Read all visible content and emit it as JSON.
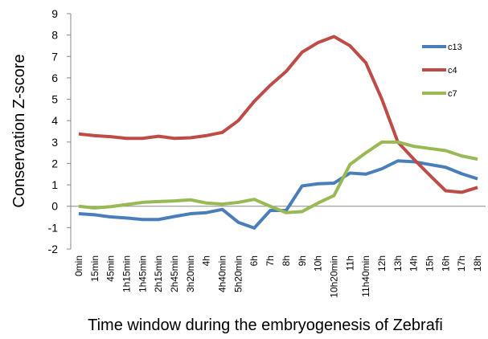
{
  "chart_data": {
    "type": "line",
    "x_label": "Time window during the embryogenesis of Zebrafi",
    "y_label": "Conservation Z-score",
    "categories": [
      "0min",
      "15min",
      "45min",
      "1h15min",
      "1h45min",
      "2h15min",
      "2h45min",
      "3h20min",
      "4h",
      "4h40min",
      "5h20min",
      "6h",
      "7h",
      "8h",
      "9h",
      "10h",
      "10h20min",
      "11h",
      "11h40min",
      "12h",
      "13h",
      "14h",
      "15h",
      "16h",
      "17h",
      "18h"
    ],
    "series": [
      {
        "name": "c13",
        "color": "#4a7ebb",
        "values": [
          -0.35,
          -0.4,
          -0.5,
          -0.55,
          -0.62,
          -0.62,
          -0.48,
          -0.35,
          -0.3,
          -0.15,
          -0.75,
          -1.02,
          -0.2,
          -0.2,
          0.95,
          1.05,
          1.08,
          1.55,
          1.5,
          1.75,
          2.12,
          2.08,
          1.95,
          1.82,
          1.52,
          1.28
        ]
      },
      {
        "name": "c4",
        "color": "#be4b48",
        "values": [
          3.38,
          3.3,
          3.25,
          3.17,
          3.17,
          3.27,
          3.17,
          3.2,
          3.3,
          3.45,
          4.0,
          4.9,
          5.65,
          6.3,
          7.2,
          7.65,
          7.93,
          7.5,
          6.7,
          5.0,
          3.0,
          2.2,
          1.45,
          0.72,
          0.65,
          0.88
        ]
      },
      {
        "name": "c7",
        "color": "#98b954",
        "values": [
          0,
          -0.08,
          -0.02,
          0.08,
          0.18,
          0.22,
          0.25,
          0.3,
          0.15,
          0.1,
          0.18,
          0.32,
          0.0,
          -0.3,
          -0.25,
          0.15,
          0.5,
          1.95,
          2.5,
          3.0,
          3.0,
          2.8,
          2.7,
          2.6,
          2.35,
          2.2
        ]
      }
    ],
    "ylim": [
      -2,
      9
    ],
    "yticks": [
      -2,
      -1,
      0,
      1,
      2,
      3,
      4,
      5,
      6,
      7,
      8,
      9
    ],
    "grid": false,
    "legend": "right"
  }
}
